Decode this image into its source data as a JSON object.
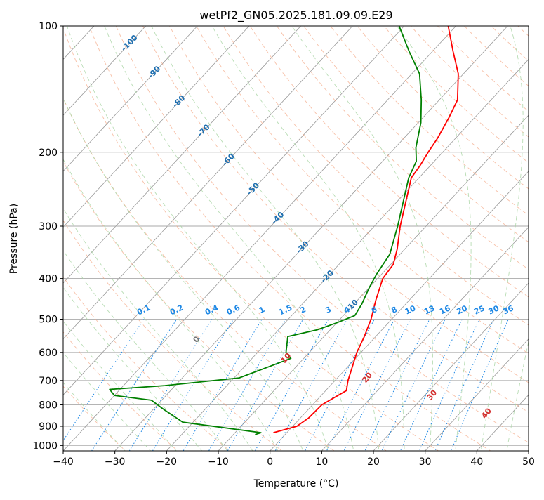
{
  "chart_data": {
    "type": "skew-t",
    "title": "wetPf2_GN05.2025.181.09.09.E29",
    "xlabel": "Temperature (°C)",
    "ylabel": "Pressure (hPa)",
    "xlim": [
      -40,
      50
    ],
    "ylim": [
      1030,
      100
    ],
    "y_scale": "log",
    "grid": true,
    "x_ticks": [
      "−40",
      "−30",
      "−20",
      "−10",
      "0",
      "10",
      "20",
      "30",
      "40",
      "50"
    ],
    "y_ticks": [
      "100",
      "200",
      "300",
      "400",
      "500",
      "600",
      "700",
      "800",
      "900",
      "1000"
    ],
    "dry_adiabat_labels": [
      "-100",
      "-90",
      "-80",
      "-70",
      "-60",
      "-50",
      "-40",
      "-30",
      "-20",
      "-10"
    ],
    "mixing_ratio_labels": [
      "0.1",
      "0.2",
      "0.4",
      "0.6",
      "1",
      "1.5",
      "2",
      "3",
      "4",
      "6",
      "8",
      "10",
      "13",
      "16",
      "20",
      "25",
      "30",
      "36"
    ],
    "moist_adiabat_labels": [
      "0",
      "10",
      "20",
      "30",
      "40"
    ],
    "colors": {
      "temperature": "#ff0000",
      "dewpoint": "#008000",
      "dry_adiabat_label": "#1f6fb0",
      "mixing_ratio": "#1e88e5",
      "moist_label": "#d32f2f",
      "moist_zero_label": "#777777",
      "dry_adiabat_line": "#f4a582",
      "moist_adiabat_line": "#a8d5a2",
      "isotherm": "#999999"
    },
    "temperature": [
      [
        932,
        -2.6
      ],
      [
        900,
        0.8
      ],
      [
        860,
        1.6
      ],
      [
        800,
        1.8
      ],
      [
        740,
        4.0
      ],
      [
        700,
        2.5
      ],
      [
        600,
        -0.8
      ],
      [
        550,
        -2.2
      ],
      [
        500,
        -4.0
      ],
      [
        450,
        -6.5
      ],
      [
        400,
        -9.0
      ],
      [
        370,
        -9.5
      ],
      [
        340,
        -11.5
      ],
      [
        300,
        -15.0
      ],
      [
        260,
        -18.5
      ],
      [
        230,
        -21.5
      ],
      [
        215,
        -22.0
      ],
      [
        200,
        -22.8
      ],
      [
        185,
        -23.5
      ],
      [
        165,
        -25.0
      ],
      [
        150,
        -26.5
      ],
      [
        130,
        -31.0
      ],
      [
        115,
        -36.0
      ],
      [
        100,
        -41.5
      ]
    ],
    "dewpoint": [
      [
        942,
        -5.8
      ],
      [
        932,
        -5.0
      ],
      [
        880,
        -22.0
      ],
      [
        820,
        -28.0
      ],
      [
        780,
        -32.0
      ],
      [
        760,
        -40.0
      ],
      [
        735,
        -42.0
      ],
      [
        720,
        -32.0
      ],
      [
        690,
        -19.0
      ],
      [
        620,
        -12.5
      ],
      [
        600,
        -14.5
      ],
      [
        550,
        -17.0
      ],
      [
        530,
        -12.5
      ],
      [
        510,
        -10.0
      ],
      [
        490,
        -7.8
      ],
      [
        460,
        -8.5
      ],
      [
        420,
        -10.0
      ],
      [
        390,
        -11.0
      ],
      [
        350,
        -12.0
      ],
      [
        300,
        -15.5
      ],
      [
        260,
        -19.0
      ],
      [
        230,
        -22.0
      ],
      [
        210,
        -23.5
      ],
      [
        195,
        -26.0
      ],
      [
        170,
        -29.5
      ],
      [
        150,
        -33.5
      ],
      [
        130,
        -38.5
      ],
      [
        115,
        -44.5
      ],
      [
        100,
        -51.0
      ]
    ]
  }
}
